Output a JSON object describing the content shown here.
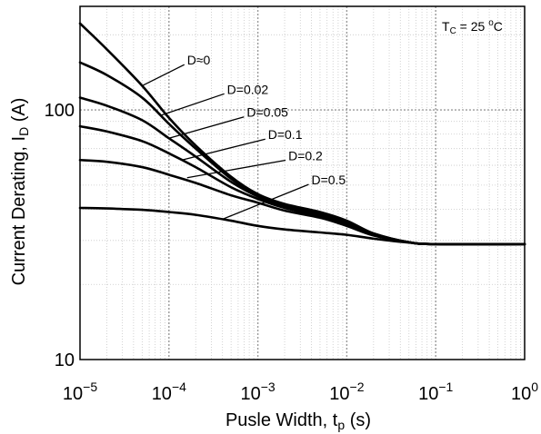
{
  "chart_data": {
    "type": "line",
    "title": "",
    "condition_note": {
      "prefix": "T",
      "sub": "C",
      "mid": " = 25 ",
      "sup": "o",
      "suffix": "C"
    },
    "x_scale": "log",
    "y_scale": "log",
    "xlim": [
      1e-05,
      1
    ],
    "ylim": [
      10,
      260
    ],
    "grid": true,
    "xlabel": {
      "main": "Pusle Width, t",
      "sub": "p",
      "tail": " (s)"
    },
    "ylabel": {
      "main": "Current Derating, I",
      "sub": "D",
      "tail": " (A)"
    },
    "x_ticks": [
      {
        "value": 1e-05,
        "base": "10",
        "exp": "−5"
      },
      {
        "value": 0.0001,
        "base": "10",
        "exp": "−4"
      },
      {
        "value": 0.001,
        "base": "10",
        "exp": "−3"
      },
      {
        "value": 0.01,
        "base": "10",
        "exp": "−2"
      },
      {
        "value": 0.1,
        "base": "10",
        "exp": "−1"
      },
      {
        "value": 1,
        "base": "10",
        "exp": "0"
      }
    ],
    "y_ticks": [
      {
        "value": 10,
        "label": "10"
      },
      {
        "value": 100,
        "label": "100"
      }
    ],
    "series": [
      {
        "name": "D≈0",
        "x": [
          1e-05,
          2e-05,
          5e-05,
          0.0001,
          0.0002,
          0.0005,
          0.001,
          0.002,
          0.005,
          0.01,
          0.02,
          0.05,
          0.1,
          1
        ],
        "y": [
          222,
          175,
          125,
          93,
          72,
          54,
          46,
          42,
          39,
          36,
          32,
          29.5,
          29,
          29
        ]
      },
      {
        "name": "D=0.02",
        "x": [
          1e-05,
          2e-05,
          5e-05,
          0.0001,
          0.0002,
          0.0005,
          0.001,
          0.002,
          0.005,
          0.01,
          0.02,
          0.05,
          0.1,
          1
        ],
        "y": [
          155,
          138,
          112,
          88,
          70,
          53,
          45.5,
          41.5,
          38.5,
          35.5,
          32,
          29.5,
          29,
          29
        ]
      },
      {
        "name": "D=0.05",
        "x": [
          1e-05,
          2e-05,
          5e-05,
          0.0001,
          0.0002,
          0.0005,
          0.001,
          0.002,
          0.005,
          0.01,
          0.02,
          0.05,
          0.1,
          1
        ],
        "y": [
          112,
          104,
          91,
          77,
          65,
          51.5,
          45,
          41,
          38,
          35,
          31.8,
          29.5,
          29,
          29
        ]
      },
      {
        "name": "D=0.1",
        "x": [
          1e-05,
          2e-05,
          5e-05,
          0.0001,
          0.0002,
          0.0005,
          0.001,
          0.002,
          0.005,
          0.01,
          0.02,
          0.05,
          0.1,
          1
        ],
        "y": [
          86,
          82,
          75,
          67,
          59,
          49,
          44,
          40.5,
          37.5,
          34.8,
          31.6,
          29.5,
          29,
          29
        ]
      },
      {
        "name": "D=0.2",
        "x": [
          1e-05,
          2e-05,
          5e-05,
          0.0001,
          0.0002,
          0.0005,
          0.001,
          0.002,
          0.005,
          0.01,
          0.02,
          0.05,
          0.1,
          1
        ],
        "y": [
          63,
          62,
          59,
          55,
          51,
          45.5,
          42.5,
          39.5,
          37,
          34.3,
          31.4,
          29.5,
          29,
          29
        ]
      },
      {
        "name": "D=0.5",
        "x": [
          1e-05,
          2e-05,
          5e-05,
          0.0001,
          0.0002,
          0.0005,
          0.001,
          0.002,
          0.005,
          0.01,
          0.02,
          0.05,
          0.1,
          1
        ],
        "y": [
          40.5,
          40.3,
          39.8,
          39,
          38,
          36,
          34.3,
          33.2,
          32.3,
          31.6,
          30.5,
          29.4,
          29,
          29
        ]
      }
    ],
    "annotations": [
      {
        "text": "D≈0",
        "series": 0,
        "point_x": 5e-05,
        "point_y": 125,
        "label_x": 0.00016,
        "label_y": 157
      },
      {
        "text": "D=0.02",
        "series": 1,
        "point_x": 8e-05,
        "point_y": 95,
        "label_x": 0.00045,
        "label_y": 120
      },
      {
        "text": "D=0.05",
        "series": 2,
        "point_x": 0.0001,
        "point_y": 77,
        "label_x": 0.00075,
        "label_y": 97
      },
      {
        "text": "D=0.1",
        "series": 3,
        "point_x": 0.00014,
        "point_y": 63,
        "label_x": 0.0013,
        "label_y": 79
      },
      {
        "text": "D=0.2",
        "series": 4,
        "point_x": 0.00016,
        "point_y": 53.5,
        "label_x": 0.0022,
        "label_y": 65
      },
      {
        "text": "D=0.5",
        "series": 5,
        "point_x": 0.0004,
        "point_y": 36.5,
        "label_x": 0.004,
        "label_y": 52
      }
    ]
  }
}
